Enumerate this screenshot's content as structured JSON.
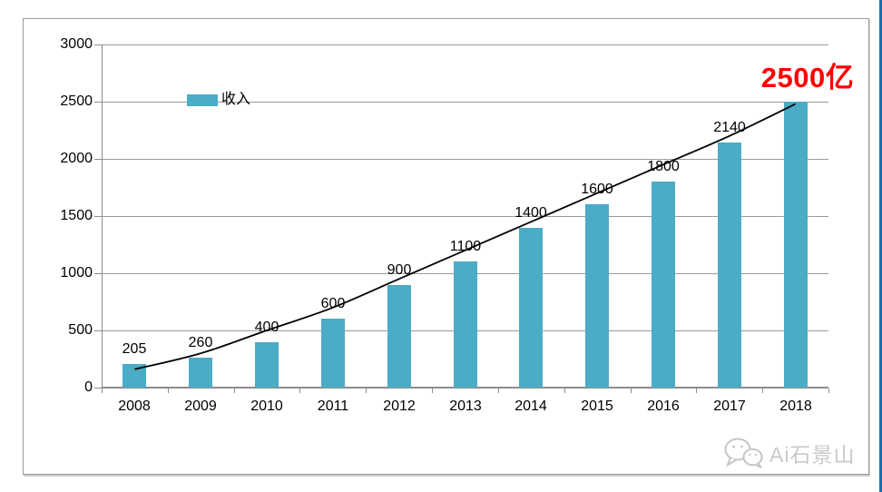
{
  "chart_data": {
    "type": "bar",
    "title": "",
    "categories": [
      "2008",
      "2009",
      "2010",
      "2011",
      "2012",
      "2013",
      "2014",
      "2015",
      "2016",
      "2017",
      "2018"
    ],
    "series": [
      {
        "name": "收入",
        "values": [
          205,
          260,
          400,
          600,
          900,
          1100,
          1400,
          1600,
          1800,
          2140,
          2500
        ]
      }
    ],
    "value_labels": [
      "205",
      "260",
      "400",
      "600",
      "900",
      "1100",
      "1400",
      "1600",
      "1800",
      "2140",
      ""
    ],
    "annotation": {
      "text": "2500亿",
      "color": "#fe0000"
    },
    "trendline": {
      "values": [
        160,
        300,
        500,
        700,
        950,
        1200,
        1450,
        1700,
        1950,
        2200,
        2480
      ],
      "color": "#000000"
    },
    "y_axis": {
      "min": 0,
      "max": 3000,
      "tick_step": 500,
      "ticks": [
        "0",
        "500",
        "1000",
        "1500",
        "2000",
        "2500",
        "3000"
      ]
    },
    "legend": {
      "label": "收入",
      "position": "inside-top-left"
    },
    "grid": true,
    "bar_color": "#4BACC6",
    "grid_color": "#9b9b9b",
    "axis_color": "#8c8c8c"
  },
  "watermark": {
    "text": "Ai石景山",
    "icon": "wechat-icon",
    "color": "#c9c9c9"
  },
  "window": {
    "edge_color": "#1c6fae"
  }
}
